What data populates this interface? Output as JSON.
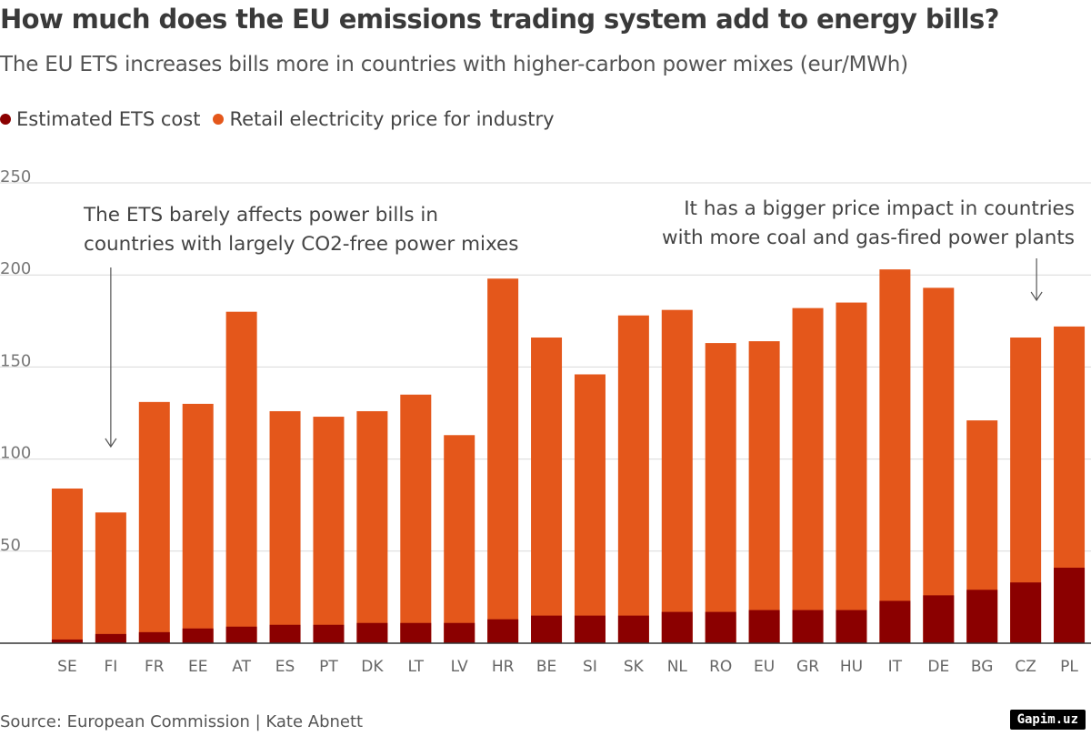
{
  "title": "How much does the EU emissions trading system add to energy bills?",
  "subtitle": "The EU ETS increases bills more in countries with higher-carbon power mixes (eur/MWh)",
  "colors": {
    "ets": "#8b0000",
    "retail": "#e4571b",
    "grid": "#d9d9d9",
    "axis": "#333333",
    "arrow": "#555555"
  },
  "legend": [
    {
      "label": "Estimated ETS cost",
      "color": "#8b0000"
    },
    {
      "label": "Retail electricity price for industry",
      "color": "#e4571b"
    }
  ],
  "chart_data": {
    "type": "bar",
    "stacked": false,
    "overlay": true,
    "categories": [
      "SE",
      "FI",
      "FR",
      "EE",
      "AT",
      "ES",
      "PT",
      "DK",
      "LT",
      "LV",
      "HR",
      "BE",
      "SI",
      "SK",
      "NL",
      "RO",
      "EU",
      "GR",
      "HU",
      "IT",
      "DE",
      "BG",
      "CZ",
      "PL"
    ],
    "series": [
      {
        "name": "Retail electricity price for industry",
        "values": [
          84,
          71,
          131,
          130,
          180,
          126,
          123,
          126,
          135,
          113,
          198,
          166,
          146,
          178,
          181,
          163,
          164,
          182,
          185,
          203,
          193,
          121,
          166,
          172
        ]
      },
      {
        "name": "Estimated ETS cost",
        "values": [
          2,
          5,
          6,
          8,
          9,
          10,
          10,
          11,
          11,
          11,
          13,
          15,
          15,
          15,
          17,
          17,
          18,
          18,
          18,
          23,
          26,
          29,
          33,
          41
        ]
      }
    ],
    "yticks": [
      50,
      100,
      150,
      200,
      250
    ],
    "ylim": [
      0,
      250
    ],
    "xlabel": "",
    "ylabel": "",
    "annotations": [
      {
        "lines": [
          "The ETS barely affects power bills in",
          "countries with largely CO2-free power mixes"
        ],
        "points_to": "FI"
      },
      {
        "lines": [
          "It has a bigger price impact in countries",
          "with more coal and gas-fired power plants"
        ],
        "points_to": "CZ"
      }
    ]
  },
  "source": "Source: European Commission | Kate Abnett",
  "badge": "Gapim.uz"
}
